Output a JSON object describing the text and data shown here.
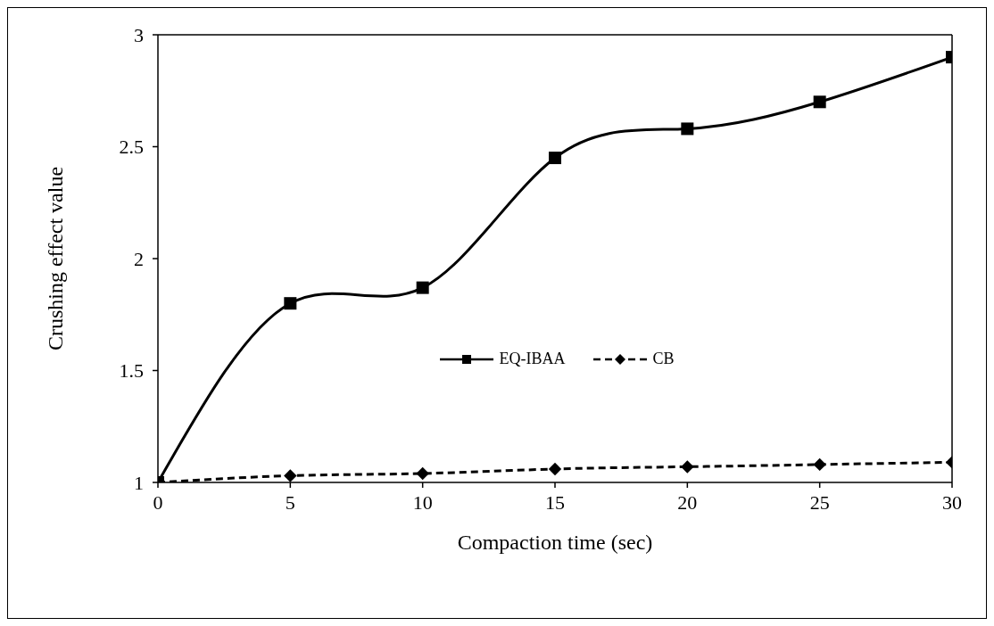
{
  "chart_data": {
    "type": "line",
    "xlabel": "Compaction time (sec)",
    "ylabel": "Crushing effect value",
    "x": [
      0,
      5,
      10,
      15,
      20,
      25,
      30
    ],
    "series": [
      {
        "name": "EQ-IBAA",
        "color": "#000000",
        "marker": "square",
        "line_style": "solid",
        "values": [
          1,
          1.8,
          1.87,
          2.45,
          2.58,
          2.7,
          2.9
        ]
      },
      {
        "name": "CB",
        "color": "#000000",
        "marker": "diamond",
        "line_style": "dashed",
        "values": [
          1,
          1.03,
          1.04,
          1.06,
          1.07,
          1.08,
          1.09
        ]
      }
    ],
    "xlim": [
      0,
      30
    ],
    "xticks": [
      0,
      5,
      10,
      15,
      20,
      25,
      30
    ],
    "ylim": [
      1,
      3
    ],
    "yticks": [
      1,
      1.5,
      2,
      2.5,
      3
    ],
    "grid": false,
    "legend": "center"
  }
}
